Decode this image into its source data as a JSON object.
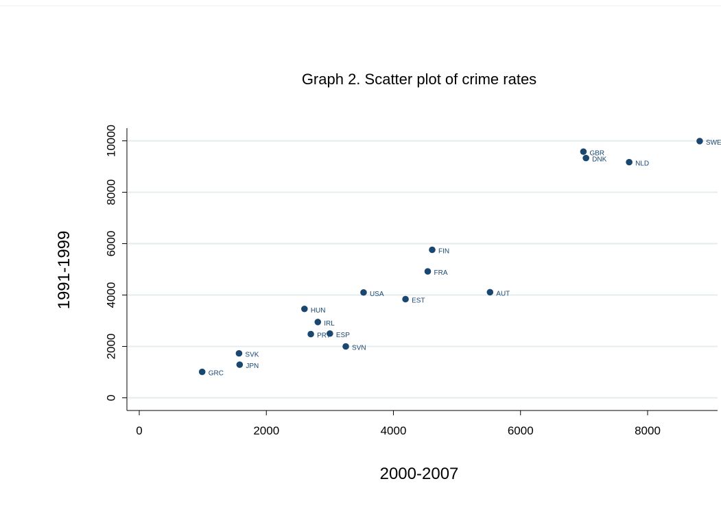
{
  "chart_data": {
    "type": "scatter",
    "title": "Graph 2. Scatter plot of crime rates",
    "xlabel": "2000-2007",
    "ylabel": "1991-1999",
    "xlim": [
      -200,
      8900
    ],
    "ylim": [
      -500,
      10500
    ],
    "xticks": [
      "0",
      "2000",
      "4000",
      "6000",
      "8000"
    ],
    "yticks": [
      "0",
      "2000",
      "4000",
      "6000",
      "8000",
      "10000"
    ],
    "grid": true,
    "marker_color": "#1a476f",
    "points": [
      {
        "label": "GRC",
        "x": 990,
        "y": 1010
      },
      {
        "label": "JPN",
        "x": 1580,
        "y": 1290
      },
      {
        "label": "SVK",
        "x": 1570,
        "y": 1730
      },
      {
        "label": "HUN",
        "x": 2600,
        "y": 3460
      },
      {
        "label": "IRL",
        "x": 2810,
        "y": 2950
      },
      {
        "label": "PRT",
        "x": 2700,
        "y": 2480
      },
      {
        "label": "ESP",
        "x": 3000,
        "y": 2500
      },
      {
        "label": "SVN",
        "x": 3250,
        "y": 2000
      },
      {
        "label": "USA",
        "x": 3530,
        "y": 4100
      },
      {
        "label": "EST",
        "x": 4190,
        "y": 3840
      },
      {
        "label": "FRA",
        "x": 4540,
        "y": 4920
      },
      {
        "label": "FIN",
        "x": 4610,
        "y": 5760
      },
      {
        "label": "AUT",
        "x": 5520,
        "y": 4110
      },
      {
        "label": "GBR",
        "x": 6990,
        "y": 9580
      },
      {
        "label": "DNK",
        "x": 7030,
        "y": 9330
      },
      {
        "label": "NLD",
        "x": 7710,
        "y": 9170
      },
      {
        "label": "SWE",
        "x": 8820,
        "y": 9990
      }
    ]
  }
}
